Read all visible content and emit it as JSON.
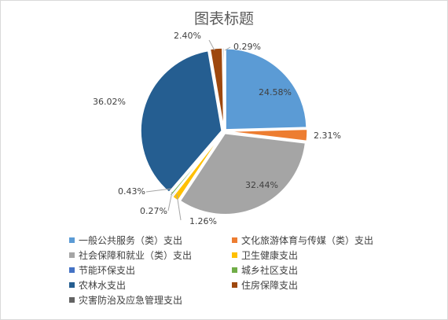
{
  "chart_data": {
    "type": "pie",
    "title": "图表标题",
    "slices": [
      {
        "label": "一般公共服务（类）支出",
        "value": 24.58,
        "display": "24.58%",
        "color": "#5b9bd5"
      },
      {
        "label": "文化旅游体育与传媒（类）支出",
        "value": 2.31,
        "display": "2.31%",
        "color": "#ed7d31"
      },
      {
        "label": "社会保障和就业（类）支出",
        "value": 32.44,
        "display": "32.44%",
        "color": "#a5a5a5"
      },
      {
        "label": "卫生健康支出",
        "value": 1.26,
        "display": "1.26%",
        "color": "#ffc000"
      },
      {
        "label": "节能环保支出",
        "value": 0.27,
        "display": "0.27%",
        "color": "#4472c4"
      },
      {
        "label": "城乡社区支出",
        "value": 0.43,
        "display": "0.43%",
        "color": "#70ad47"
      },
      {
        "label": "农林水支出",
        "value": 36.02,
        "display": "36.02%",
        "color": "#255e91"
      },
      {
        "label": "住房保障支出",
        "value": 2.4,
        "display": "2.40%",
        "color": "#9e480e"
      },
      {
        "label": "灾害防治及应急管理支出",
        "value": 0.29,
        "display": "0.29%",
        "color": "#636363"
      }
    ],
    "legend_position": "bottom"
  }
}
